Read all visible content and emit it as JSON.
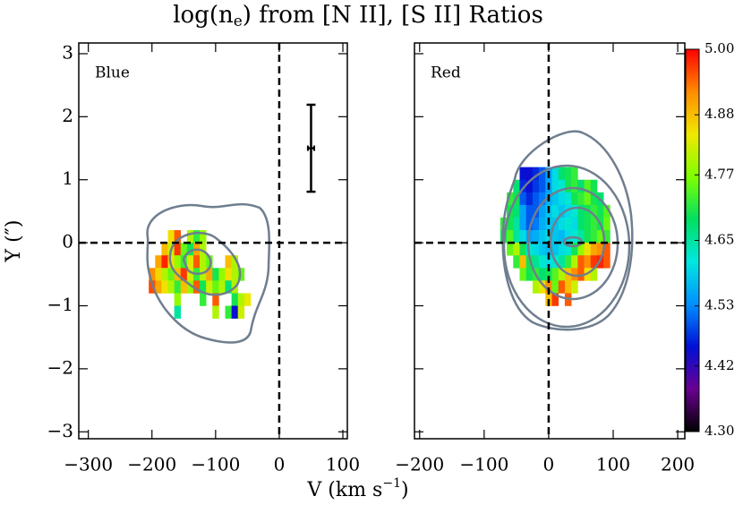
{
  "chart_data": {
    "type": "heatmap",
    "title_parts": [
      "log(n",
      "e",
      ") from [N II], [S II] Ratios"
    ],
    "xlabel_parts": [
      "V (km s",
      "−1",
      ")"
    ],
    "ylabel": "Y (″)",
    "ylim": [
      -3.11,
      3.17
    ],
    "yticks": [
      3,
      2,
      1,
      0,
      {
        "value": -1,
        "label": "−1"
      },
      {
        "value": -2,
        "label": "−2"
      },
      {
        "value": -3,
        "label": "−3"
      }
    ],
    "pixel": [
      10,
      0.2
    ],
    "reference_lines": {
      "x": 0,
      "y": 0
    },
    "colorbar": {
      "lim": [
        4.3,
        5.0
      ],
      "ticks": [
        {
          "value": 4.3,
          "label": "4.30"
        },
        4.42,
        4.53,
        4.65,
        4.77,
        4.88,
        {
          "value": 5.0,
          "label": "5.00"
        }
      ],
      "colors": [
        "#000000",
        "#6a0090",
        "#0010d8",
        "#0090ff",
        "#00e8e0",
        "#00e060",
        "#80ff00",
        "#f0e800",
        "#ff8c00",
        "#ff0000"
      ]
    },
    "panels": [
      {
        "label": "Blue",
        "xlim": [
          -315,
          107
        ],
        "xticks": [
          {
            "value": -300,
            "label": "−300"
          },
          {
            "value": -200,
            "label": "−200"
          },
          {
            "value": -100,
            "label": "−100"
          },
          0,
          100
        ],
        "error_bar": {
          "x": 50,
          "y": 1.5,
          "xerr": 5,
          "yerr": 0.69
        },
        "rows": [
          {
            "y": 0.1,
            "x": -170,
            "values": [
              4.85,
              4.95,
              null,
              4.8,
              4.72,
              4.78
            ]
          },
          {
            "y": -0.1,
            "x": -180,
            "values": [
              4.88,
              4.82,
              4.97,
              4.75,
              4.7,
              4.9,
              4.8
            ]
          },
          {
            "y": -0.3,
            "x": -190,
            "values": [
              4.9,
              4.98,
              4.85,
              4.78,
              4.72,
              4.83,
              4.95,
              4.8,
              4.75,
              null,
              null,
              4.88,
              4.8
            ]
          },
          {
            "y": -0.5,
            "x": -200,
            "values": [
              4.92,
              4.86,
              4.8,
              4.75,
              4.88,
              4.97,
              4.82,
              4.72,
              4.8,
              4.9,
              4.7,
              4.78,
              4.85,
              4.8,
              4.75
            ]
          },
          {
            "y": -0.7,
            "x": -200,
            "values": [
              4.96,
              4.9,
              4.85,
              4.8,
              4.72,
              4.88,
              4.78,
              4.95,
              4.7,
              4.82,
              4.75,
              4.8,
              4.68,
              4.8
            ]
          },
          {
            "y": -0.9,
            "x": -160,
            "values": [
              4.78,
              null,
              null,
              null,
              4.72,
              null,
              4.95,
              null,
              null,
              4.7,
              4.8,
              4.84
            ]
          },
          {
            "y": -1.1,
            "x": -160,
            "values": [
              4.65,
              null,
              null,
              null,
              null,
              null,
              4.8,
              null,
              4.72,
              4.45,
              4.82
            ]
          }
        ]
      },
      {
        "label": "Red",
        "xlim": [
          -208,
          211
        ],
        "xticks": [
          {
            "value": -200,
            "label": "−200"
          },
          {
            "value": -100,
            "label": "−100"
          },
          0,
          100,
          200
        ],
        "rows": [
          {
            "y": 1.1,
            "x": -40,
            "values": [
              4.45,
              4.45,
              4.47,
              4.5,
              4.55,
              4.6,
              4.68,
              4.7,
              4.72
            ]
          },
          {
            "y": 0.9,
            "x": -50,
            "values": [
              4.68,
              4.47,
              4.45,
              4.48,
              4.5,
              4.55,
              4.6,
              4.62,
              4.7,
              4.72,
              4.68,
              4.74,
              4.7
            ]
          },
          {
            "y": 0.7,
            "x": -60,
            "values": [
              4.72,
              4.7,
              4.5,
              4.47,
              4.5,
              4.52,
              4.56,
              4.58,
              4.6,
              4.62,
              4.7,
              4.72,
              4.75,
              4.7,
              4.68
            ]
          },
          {
            "y": 0.5,
            "x": -60,
            "values": [
              4.7,
              4.68,
              4.55,
              4.5,
              4.5,
              4.55,
              4.58,
              4.6,
              4.58,
              4.6,
              4.62,
              4.68,
              4.7,
              4.72,
              4.7,
              4.74
            ]
          },
          {
            "y": 0.3,
            "x": -70,
            "values": [
              4.72,
              4.7,
              4.65,
              4.55,
              4.5,
              4.52,
              4.56,
              4.58,
              4.58,
              4.6,
              4.62,
              4.6,
              4.68,
              4.7,
              4.72,
              4.7,
              4.75
            ]
          },
          {
            "y": 0.1,
            "x": -70,
            "values": [
              4.7,
              4.74,
              4.65,
              4.6,
              4.55,
              4.56,
              4.58,
              4.6,
              4.58,
              4.57,
              4.6,
              4.62,
              4.65,
              4.7,
              4.72,
              4.75,
              4.72
            ]
          },
          {
            "y": -0.1,
            "x": -60,
            "values": [
              4.75,
              4.8,
              4.7,
              4.62,
              4.6,
              4.58,
              4.57,
              4.58,
              4.6,
              4.62,
              4.7,
              4.78,
              4.85,
              4.9,
              4.92,
              4.95
            ]
          },
          {
            "y": -0.3,
            "x": -50,
            "values": [
              4.72,
              4.88,
              4.7,
              4.66,
              4.62,
              4.6,
              4.62,
              4.65,
              4.72,
              4.8,
              4.95,
              4.92,
              4.97,
              4.98,
              4.95
            ]
          },
          {
            "y": -0.5,
            "x": -40,
            "values": [
              4.75,
              4.7,
              4.72,
              4.68,
              4.7,
              4.74,
              4.8,
              4.88,
              4.92,
              4.95,
              4.85,
              4.8
            ]
          },
          {
            "y": -0.7,
            "x": -20,
            "values": [
              4.8,
              4.85,
              4.92,
              4.75,
              4.95,
              4.88,
              4.82
            ]
          },
          {
            "y": -0.9,
            "x": 0,
            "values": [
              4.88,
              4.97,
              null,
              4.95
            ]
          }
        ]
      }
    ]
  }
}
